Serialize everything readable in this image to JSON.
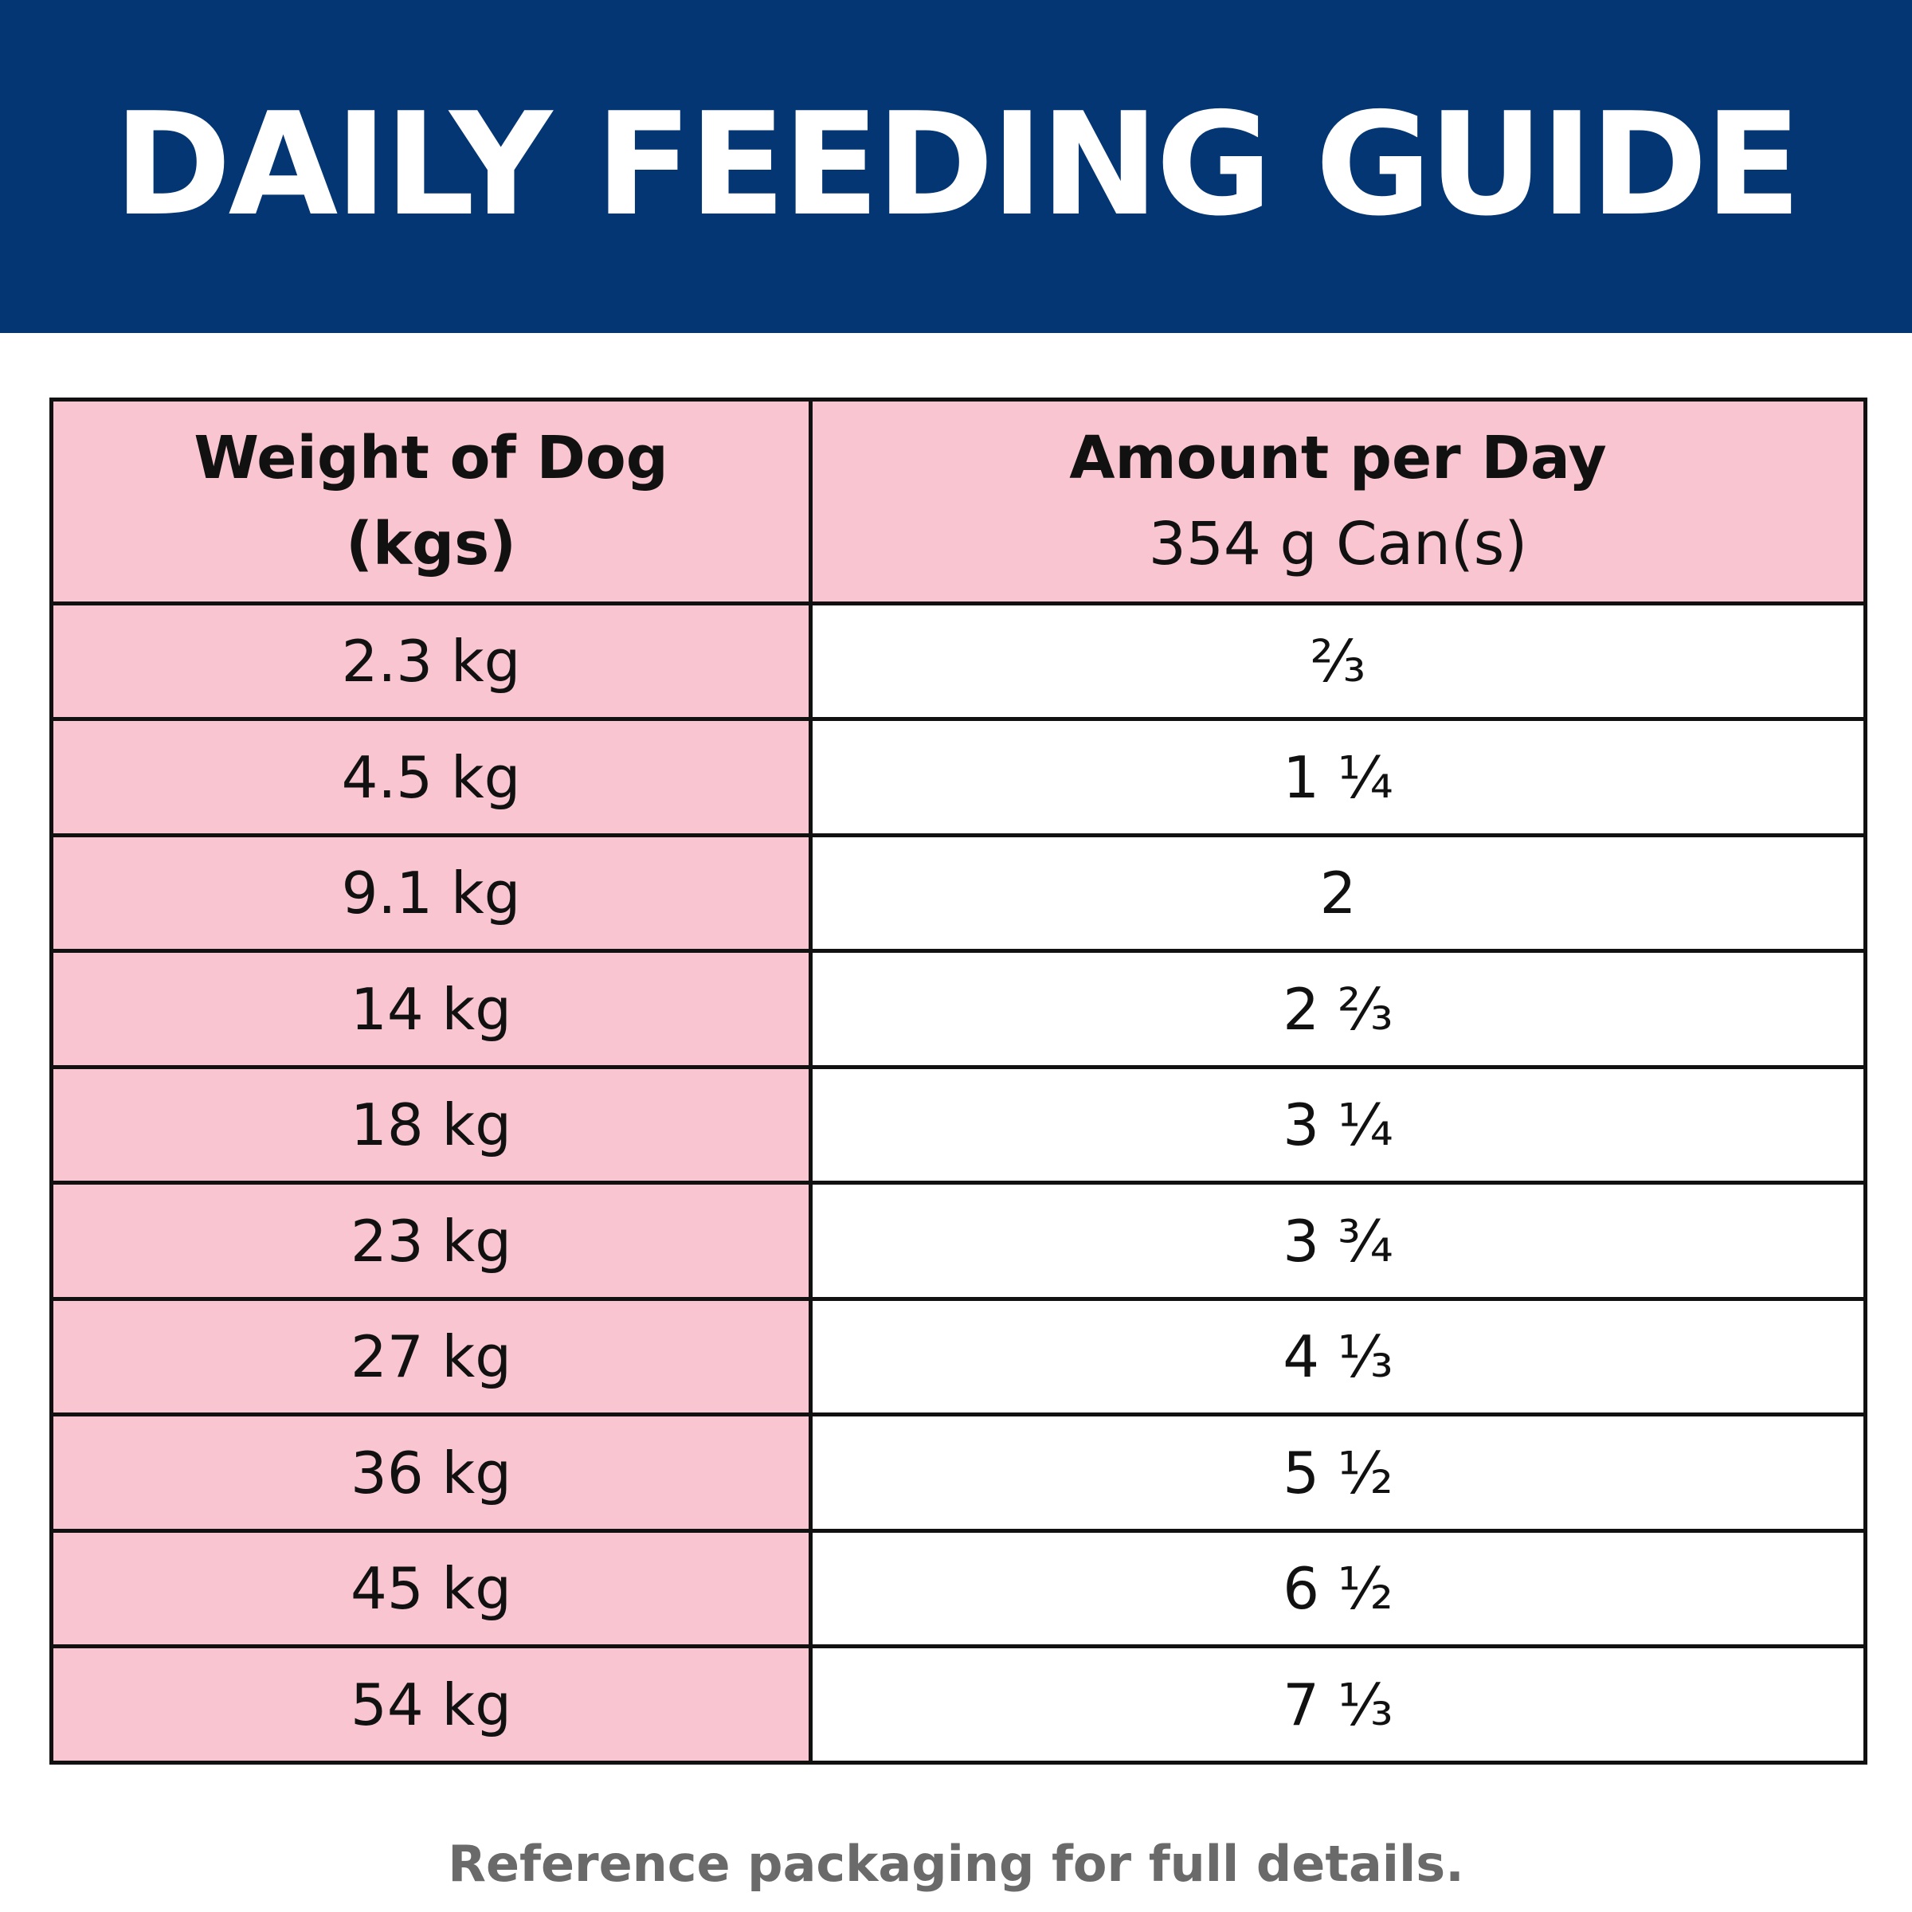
{
  "header": {
    "title": "DAILY FEEDING GUIDE",
    "background_color": "#043673",
    "text_color": "#ffffff"
  },
  "table": {
    "header_fill_color": "#f8c5d0",
    "columns": [
      {
        "title": "Weight of Dog",
        "subtitle": "(kgs)"
      },
      {
        "title": "Amount per Day",
        "subtitle": "354 g Can(s)"
      }
    ],
    "rows": [
      {
        "weight": "2.3 kg",
        "amount": "⅔"
      },
      {
        "weight": "4.5 kg",
        "amount": "1 ¼"
      },
      {
        "weight": "9.1 kg",
        "amount": "2"
      },
      {
        "weight": "14 kg",
        "amount": "2 ⅔"
      },
      {
        "weight": "18 kg",
        "amount": "3 ¼"
      },
      {
        "weight": "23 kg",
        "amount": "3 ¾"
      },
      {
        "weight": "27 kg",
        "amount": "4 ⅓"
      },
      {
        "weight": "36 kg",
        "amount": "5 ½"
      },
      {
        "weight": "45 kg",
        "amount": "6 ½"
      },
      {
        "weight": "54 kg",
        "amount": "7 ⅓"
      }
    ]
  },
  "footnote": "Reference packaging for full details."
}
